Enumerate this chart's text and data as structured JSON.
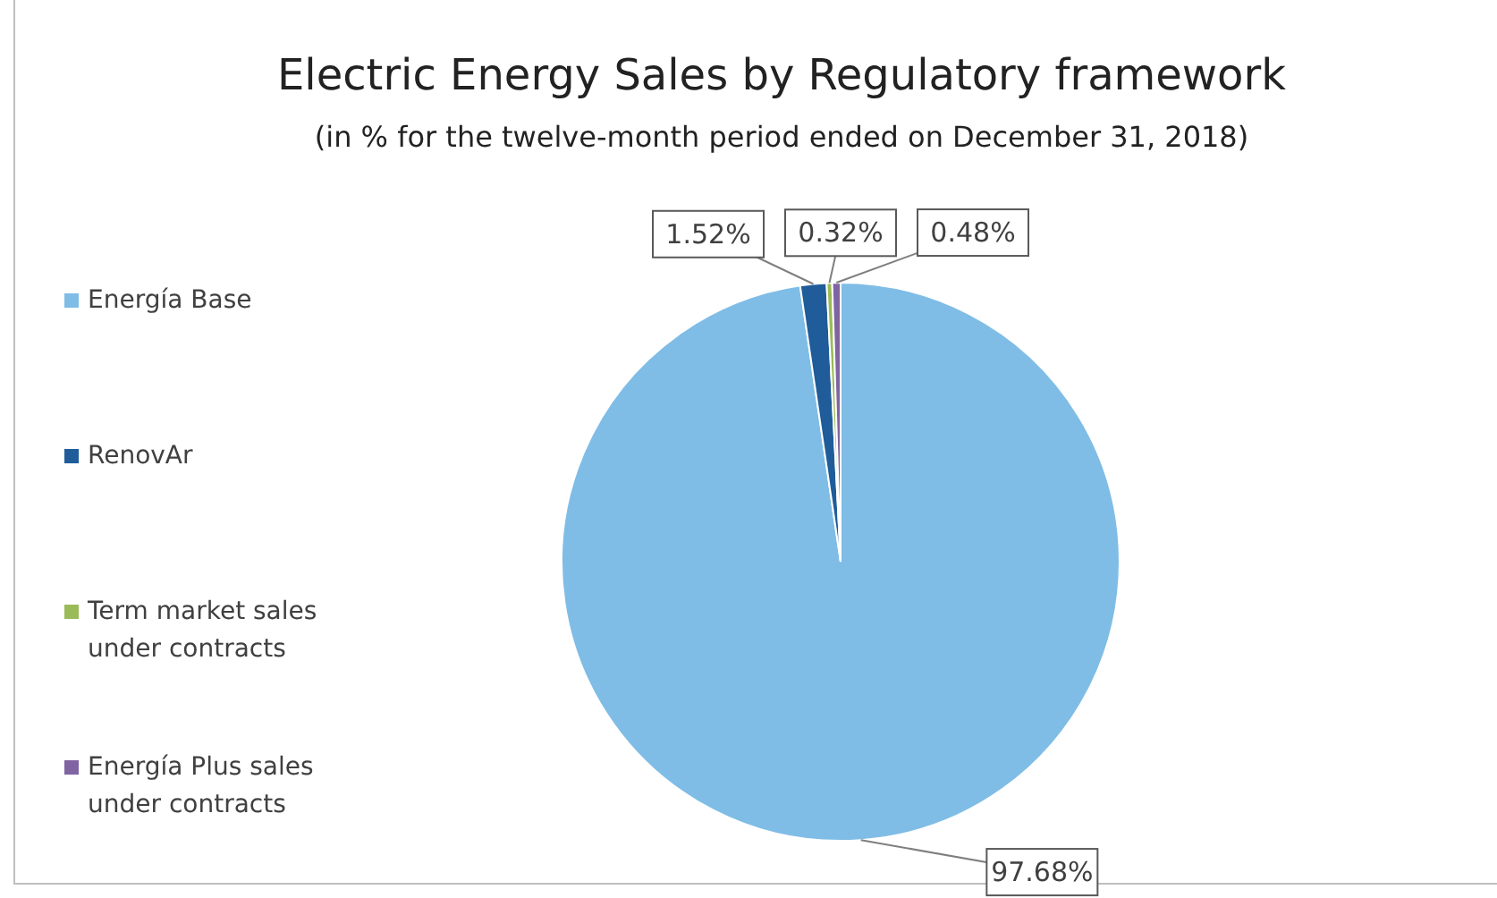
{
  "chart_data": {
    "type": "pie",
    "title": "Electric Energy Sales by Regulatory framework",
    "subtitle": "(in % for the twelve-month period ended on December 31, 2018)",
    "categories": [
      "Energía Base",
      "RenovAr",
      "Term market sales under contracts",
      "Energía Plus sales under contracts"
    ],
    "values": [
      97.68,
      1.52,
      0.32,
      0.48
    ],
    "value_labels": [
      "97.68%",
      "1.52%",
      "0.32%",
      "0.48%"
    ],
    "colors": [
      "#7fbde6",
      "#1f5c99",
      "#9bbb59",
      "#8064a2"
    ],
    "legend": "left"
  }
}
